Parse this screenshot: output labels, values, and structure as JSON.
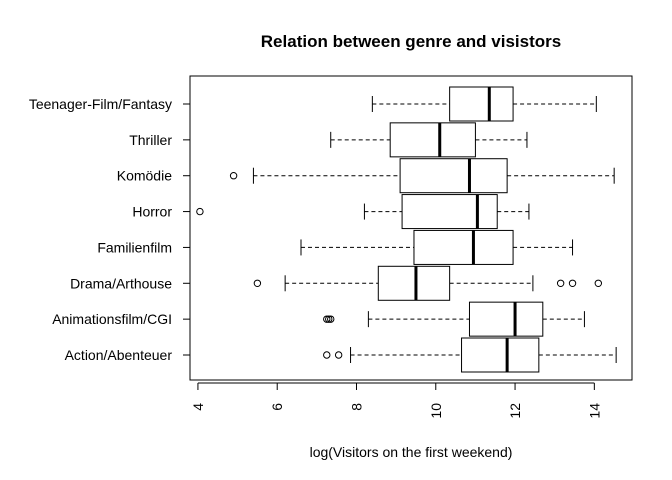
{
  "chart_data": {
    "type": "boxplot",
    "orientation": "horizontal",
    "title": "Relation between genre and visistors",
    "xlabel": "log(Visitors on the first weekend)",
    "ylabel": "",
    "xlim": [
      3.8,
      14.95
    ],
    "xticks": [
      4,
      6,
      8,
      10,
      12,
      14
    ],
    "grid": false,
    "categories": [
      "Action/Abenteuer",
      "Animationsfilm/CGI",
      "Drama/Arthouse",
      "Familienfilm",
      "Horror",
      "Komödie",
      "Thriller",
      "Teenager-Film/Fantasy"
    ],
    "boxes": [
      {
        "category": "Action/Abenteuer",
        "whisker_low": 7.85,
        "q1": 10.65,
        "median": 11.8,
        "q3": 12.6,
        "whisker_high": 14.55,
        "outliers": [
          7.25,
          7.55
        ]
      },
      {
        "category": "Animationsfilm/CGI",
        "whisker_low": 8.3,
        "q1": 10.85,
        "median": 12.0,
        "q3": 12.7,
        "whisker_high": 13.75,
        "outliers": [
          7.25,
          7.3,
          7.35
        ]
      },
      {
        "category": "Drama/Arthouse",
        "whisker_low": 6.2,
        "q1": 8.55,
        "median": 9.5,
        "q3": 10.35,
        "whisker_high": 12.45,
        "outliers": [
          5.5,
          13.15,
          13.45,
          14.1
        ]
      },
      {
        "category": "Familienfilm",
        "whisker_low": 6.6,
        "q1": 9.45,
        "median": 10.95,
        "q3": 11.95,
        "whisker_high": 13.45,
        "outliers": []
      },
      {
        "category": "Horror",
        "whisker_low": 8.2,
        "q1": 9.15,
        "median": 11.05,
        "q3": 11.55,
        "whisker_high": 12.35,
        "outliers": [
          4.05
        ]
      },
      {
        "category": "Komödie",
        "whisker_low": 5.4,
        "q1": 9.1,
        "median": 10.85,
        "q3": 11.8,
        "whisker_high": 14.5,
        "outliers": [
          4.9
        ]
      },
      {
        "category": "Thriller",
        "whisker_low": 7.35,
        "q1": 8.85,
        "median": 10.1,
        "q3": 11.0,
        "whisker_high": 12.3,
        "outliers": []
      },
      {
        "category": "Teenager-Film/Fantasy",
        "whisker_low": 8.4,
        "q1": 10.35,
        "median": 11.35,
        "q3": 11.95,
        "whisker_high": 14.05,
        "outliers": []
      }
    ]
  }
}
